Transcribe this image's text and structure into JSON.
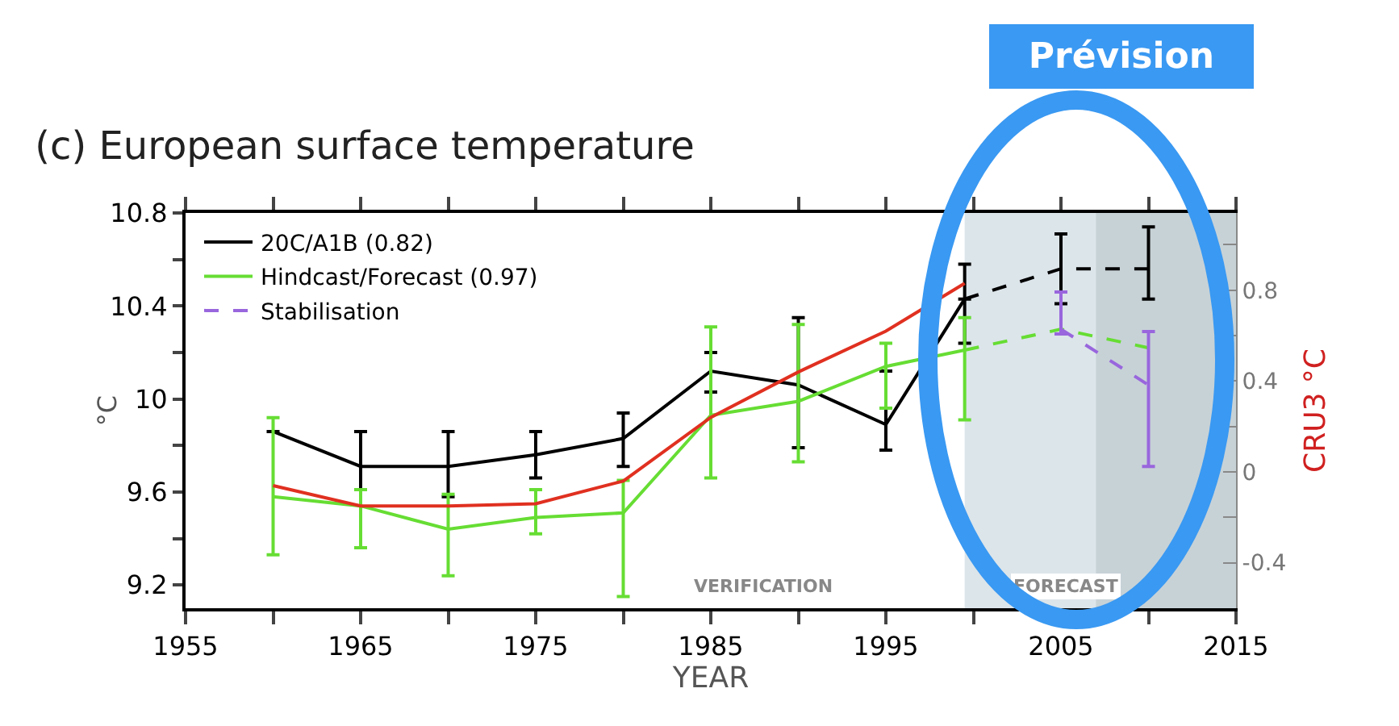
{
  "chart_data": {
    "type": "line",
    "title": "(c) European surface temperature",
    "xlabel": "YEAR",
    "ylabel": "°C",
    "y2label": "CRU3 °C",
    "xlim": [
      1955,
      2015
    ],
    "xticks": [
      1955,
      {
        "value": 1960,
        "label": null
      },
      1965,
      {
        "value": 1970,
        "label": null
      },
      1975,
      {
        "value": 1980,
        "label": null
      },
      1985,
      {
        "value": 1990,
        "label": null
      },
      1995,
      {
        "value": 2000,
        "label": null
      },
      2005,
      {
        "value": 2010,
        "label": null
      },
      2015
    ],
    "ylim": [
      9.1,
      10.8
    ],
    "yticks": [
      9.2,
      {
        "value": 9.4,
        "label": null
      },
      9.6,
      {
        "value": 9.8,
        "label": null
      },
      10.0,
      {
        "value": 10.2,
        "label": null
      },
      10.4,
      {
        "value": 10.6,
        "label": null
      },
      10.8
    ],
    "y2lim": [
      -0.6,
      1.14
    ],
    "y2ticks": [
      {
        "value": -0.6,
        "label": null
      },
      -0.4,
      {
        "value": -0.2,
        "label": null
      },
      0.0,
      {
        "value": 0.2,
        "label": null
      },
      0.4,
      {
        "value": 0.6,
        "label": null
      },
      0.8,
      {
        "value": 1.0,
        "label": null
      }
    ],
    "series": [
      {
        "name": "20C/A1B (0.82)",
        "color": "#000000",
        "line_style": "solid",
        "x": [
          1960,
          1965,
          1970,
          1975,
          1980,
          1985,
          1990,
          1995,
          1999.5
        ],
        "values": [
          9.86,
          9.71,
          9.71,
          9.76,
          9.83,
          10.12,
          10.06,
          9.89,
          10.43
        ],
        "errors": [
          null,
          [
            9.61,
            9.86
          ],
          [
            9.58,
            9.86
          ],
          [
            9.66,
            9.86
          ],
          [
            9.71,
            9.94
          ],
          [
            10.03,
            10.2
          ],
          [
            9.79,
            10.35
          ],
          [
            9.78,
            10.12
          ],
          [
            10.24,
            10.58
          ]
        ]
      },
      {
        "color": "#000000",
        "line_style": "dashed",
        "x": [
          1999.5,
          2005,
          2010
        ],
        "values": [
          10.43,
          10.56,
          10.56
        ],
        "errors": [
          null,
          [
            10.41,
            10.71
          ],
          [
            10.43,
            10.74
          ]
        ]
      },
      {
        "name": "Hindcast/Forecast (0.97)",
        "color": "#66dd33",
        "line_style": "solid",
        "x": [
          1960,
          1965,
          1970,
          1975,
          1980,
          1985,
          1990,
          1995,
          1999.5
        ],
        "values": [
          9.58,
          9.54,
          9.44,
          9.49,
          9.51,
          9.93,
          9.99,
          10.14,
          10.21
        ],
        "errors": [
          [
            9.33,
            9.92
          ],
          [
            9.36,
            9.61
          ],
          [
            9.24,
            9.59
          ],
          [
            9.42,
            9.61
          ],
          [
            9.15,
            9.65
          ],
          [
            9.66,
            10.31
          ],
          [
            9.73,
            10.32
          ],
          [
            9.96,
            10.24
          ],
          [
            9.91,
            10.35
          ]
        ]
      },
      {
        "color": "#66dd33",
        "line_style": "dashed",
        "x": [
          1999.5,
          2005,
          2010
        ],
        "values": [
          10.21,
          10.3,
          10.22
        ]
      },
      {
        "name": "Stabilisation",
        "color": "#9966dd",
        "line_style": "dashed",
        "x": [
          2005,
          2010
        ],
        "values": [
          10.3,
          10.06
        ],
        "errors": [
          [
            10.28,
            10.46
          ],
          [
            9.71,
            10.29
          ]
        ]
      },
      {
        "color": "#e03020",
        "line_style": "solid",
        "axis": "y2",
        "x": [
          1960,
          1965,
          1970,
          1975,
          1980,
          1985,
          1990,
          1995,
          1999.5
        ],
        "values": [
          -0.06,
          -0.15,
          -0.15,
          -0.14,
          -0.04,
          0.24,
          0.44,
          0.62,
          0.83
        ]
      }
    ],
    "bands": [
      {
        "axis": "x",
        "from": 1999.5,
        "to": 2015,
        "label": "FORECAST",
        "color": "#dce5ea"
      },
      {
        "axis": "x",
        "from": 2007,
        "to": 2015,
        "color": "#c7d2d7"
      }
    ],
    "annotations": [
      "Prévision",
      "VERIFICATION"
    ],
    "legend": "top left",
    "grid": false
  }
}
